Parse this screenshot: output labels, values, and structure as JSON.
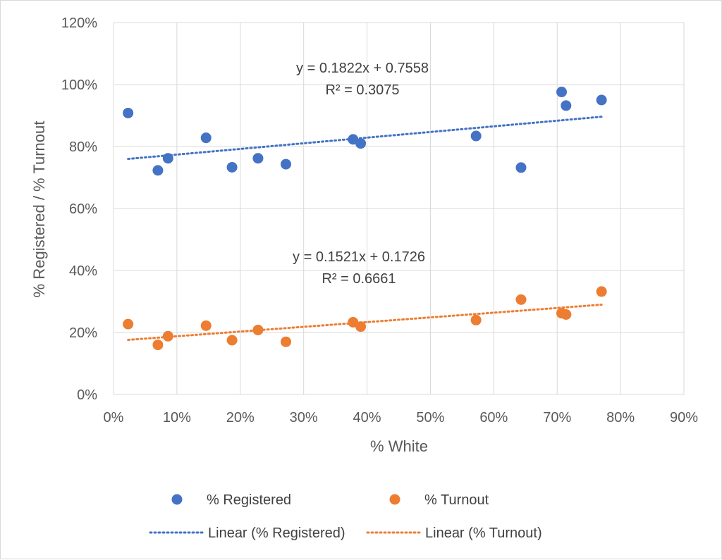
{
  "chart_data": {
    "type": "scatter",
    "xlabel": "% White",
    "ylabel": "% Registered / % Turnout",
    "xlim": [
      0,
      0.9
    ],
    "ylim": [
      0,
      1.2
    ],
    "x_ticks": [
      0,
      0.1,
      0.2,
      0.3,
      0.4,
      0.5,
      0.6,
      0.7,
      0.8,
      0.9
    ],
    "y_ticks": [
      0,
      0.2,
      0.4,
      0.6,
      0.8,
      1.0,
      1.2
    ],
    "x_tick_labels": [
      "0%",
      "10%",
      "20%",
      "30%",
      "40%",
      "50%",
      "60%",
      "70%",
      "80%",
      "90%"
    ],
    "y_tick_labels": [
      "0%",
      "20%",
      "40%",
      "60%",
      "80%",
      "100%",
      "120%"
    ],
    "grid": true,
    "legend_position": "bottom",
    "series": [
      {
        "name": "% Registered",
        "color": "#4472c4",
        "x": [
          0.023,
          0.07,
          0.086,
          0.146,
          0.187,
          0.228,
          0.272,
          0.378,
          0.39,
          0.572,
          0.643,
          0.707,
          0.714,
          0.77
        ],
        "y": [
          0.908,
          0.723,
          0.762,
          0.828,
          0.733,
          0.762,
          0.743,
          0.823,
          0.81,
          0.834,
          0.732,
          0.976,
          0.932,
          0.95
        ],
        "trendline": {
          "label": "Linear (% Registered)",
          "slope": 0.1822,
          "intercept": 0.7558,
          "x_range": [
            0.023,
            0.77
          ],
          "equation": "y = 0.1822x + 0.7558",
          "r2": "R² = 0.3075"
        }
      },
      {
        "name": "% Turnout",
        "color": "#ed7d31",
        "x": [
          0.023,
          0.07,
          0.086,
          0.146,
          0.187,
          0.228,
          0.272,
          0.378,
          0.39,
          0.572,
          0.643,
          0.707,
          0.714,
          0.77
        ],
        "y": [
          0.227,
          0.16,
          0.188,
          0.222,
          0.175,
          0.208,
          0.17,
          0.233,
          0.219,
          0.24,
          0.306,
          0.262,
          0.258,
          0.332
        ],
        "trendline": {
          "label": "Linear (% Turnout)",
          "slope": 0.1521,
          "intercept": 0.1726,
          "x_range": [
            0.023,
            0.77
          ],
          "equation": "y = 0.1521x + 0.1726",
          "r2": "R² = 0.6661"
        }
      }
    ]
  }
}
